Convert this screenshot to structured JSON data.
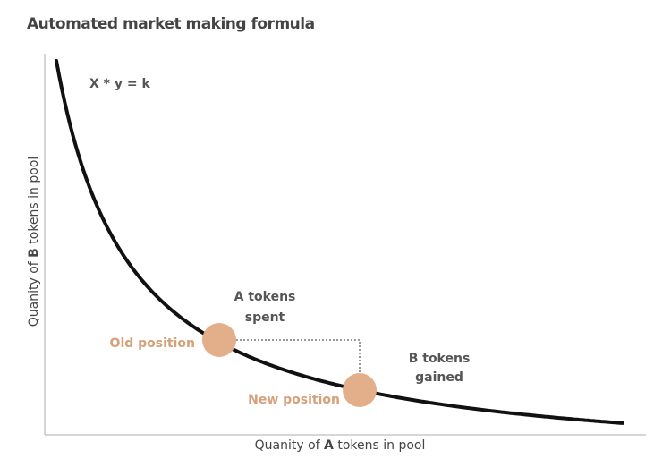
{
  "title": "Automated market making formula",
  "formula": "X * y = k",
  "x_axis_label": [
    "Quanity of ",
    "A",
    " tokens in pool"
  ],
  "y_axis_label": [
    "Quanity of ",
    "B",
    " tokens in pool"
  ],
  "points": [
    {
      "label": "Old position"
    },
    {
      "label": "New position"
    }
  ],
  "annotations": [
    [
      "A tokens",
      "spent"
    ],
    [
      "B tokens",
      "gained"
    ]
  ]
}
